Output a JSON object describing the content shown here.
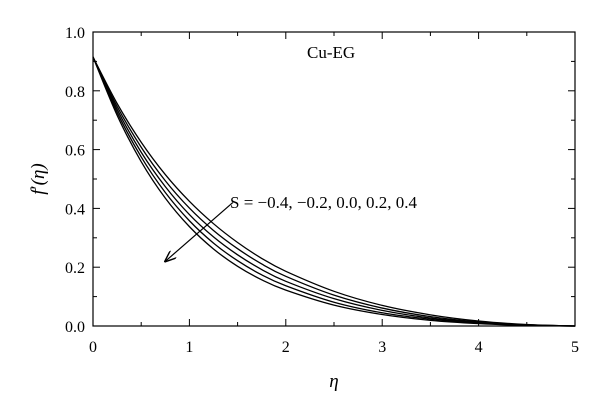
{
  "chart_data": {
    "type": "line",
    "title": "",
    "xlabel": "η",
    "ylabel_main": "f",
    "ylabel_prime": "′",
    "ylabel_arg": "(η)",
    "xlim": [
      0,
      5
    ],
    "ylim": [
      0,
      1.0
    ],
    "x_ticks": [
      0,
      1,
      2,
      3,
      4,
      5
    ],
    "x_tick_labels": [
      "0",
      "1",
      "2",
      "3",
      "4",
      "5"
    ],
    "y_ticks": [
      0,
      0.2,
      0.4,
      0.6,
      0.8,
      1.0
    ],
    "y_tick_labels": [
      "0.0",
      "0.2",
      "0.4",
      "0.6",
      "0.8",
      "1.0"
    ],
    "grid": false,
    "line_color": "#000000",
    "x": [
      0,
      0.25,
      0.5,
      0.75,
      1.0,
      1.25,
      1.5,
      1.75,
      2.0,
      2.5,
      3.0,
      3.5,
      4.0,
      4.5,
      5.0
    ],
    "series": [
      {
        "values": [
          0.915,
          0.757,
          0.625,
          0.515,
          0.424,
          0.348,
          0.284,
          0.23,
          0.186,
          0.118,
          0.07,
          0.038,
          0.017,
          0.005,
          0.0
        ]
      },
      {
        "values": [
          0.915,
          0.747,
          0.608,
          0.494,
          0.401,
          0.325,
          0.263,
          0.211,
          0.169,
          0.105,
          0.061,
          0.032,
          0.014,
          0.004,
          0.0
        ]
      },
      {
        "values": [
          0.915,
          0.737,
          0.591,
          0.474,
          0.379,
          0.303,
          0.242,
          0.192,
          0.152,
          0.093,
          0.053,
          0.027,
          0.012,
          0.003,
          0.0
        ]
      },
      {
        "values": [
          0.915,
          0.727,
          0.575,
          0.454,
          0.358,
          0.282,
          0.222,
          0.174,
          0.137,
          0.081,
          0.045,
          0.023,
          0.01,
          0.002,
          0.0
        ]
      },
      {
        "values": [
          0.915,
          0.717,
          0.559,
          0.435,
          0.338,
          0.262,
          0.203,
          0.157,
          0.122,
          0.071,
          0.039,
          0.019,
          0.008,
          0.002,
          0.0
        ]
      }
    ],
    "annotations": {
      "box_label": "Cu-EG",
      "s_label": "S = −0.4, −0.2, 0.0, 0.2, 0.4",
      "arrow": {
        "from": [
          1.45,
          0.42
        ],
        "to": [
          0.75,
          0.22
        ]
      }
    }
  }
}
